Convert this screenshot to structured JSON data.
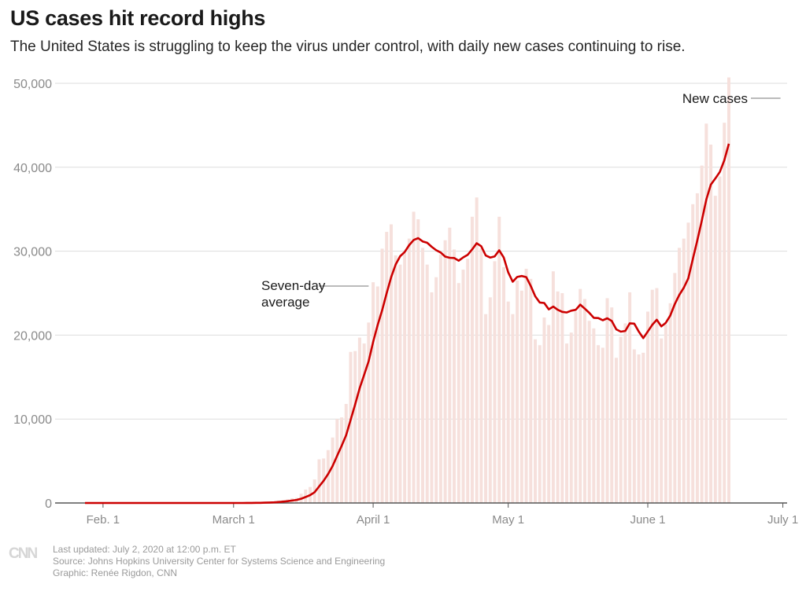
{
  "header": {
    "title": "US cases hit record highs",
    "subtitle": "The United States is struggling to keep the virus under control, with daily new cases continuing to rise."
  },
  "footer": {
    "logo": "CNN",
    "updated": "Last updated: July 2, 2020 at 12:00 p.m. ET",
    "source": "Source: Johns Hopkins University Center for Systems Science and Engineering",
    "credit": "Graphic: Renée Rigdon, CNN"
  },
  "colors": {
    "bar": "#f6e0dc",
    "line": "#cc0000",
    "grid": "#dddddd",
    "axis": "#555555",
    "tick_text": "#8a8a8a"
  },
  "chart_data": {
    "type": "bar",
    "title": "US cases hit record highs",
    "xlabel": "",
    "ylabel": "",
    "start_date": "2020-01-28",
    "end_date": "2020-07-01",
    "ylim": [
      0,
      50000
    ],
    "grid": true,
    "y_ticks": [
      {
        "value": 0,
        "label": "0"
      },
      {
        "value": 10000,
        "label": "10,000"
      },
      {
        "value": 20000,
        "label": "20,000"
      },
      {
        "value": 30000,
        "label": "30,000"
      },
      {
        "value": 40000,
        "label": "40,000"
      },
      {
        "value": 50000,
        "label": "50,000"
      }
    ],
    "x_ticks": [
      {
        "day": 4,
        "label": "Feb. 1"
      },
      {
        "day": 33,
        "label": "March 1"
      },
      {
        "day": 64,
        "label": "April 1"
      },
      {
        "day": 94,
        "label": "May 1"
      },
      {
        "day": 125,
        "label": "June 1"
      },
      {
        "day": 155,
        "label": "July 1"
      }
    ],
    "annotations": [
      {
        "label_lines": [
          "Seven-day",
          "average"
        ],
        "target": "average",
        "day": 63
      },
      {
        "label_lines": [
          "New cases"
        ],
        "target": "bars",
        "day": 155
      }
    ],
    "series": [
      {
        "name": "New cases",
        "kind": "bar",
        "values": [
          0,
          0,
          0,
          0,
          0,
          1,
          0,
          2,
          0,
          0,
          1,
          0,
          0,
          0,
          0,
          1,
          0,
          0,
          0,
          0,
          0,
          0,
          0,
          0,
          0,
          0,
          0,
          0,
          1,
          0,
          0,
          0,
          0,
          5,
          9,
          18,
          20,
          25,
          30,
          50,
          90,
          150,
          180,
          290,
          350,
          430,
          560,
          620,
          1100,
          1600,
          1900,
          2800,
          5200,
          5300,
          6300,
          7800,
          10000,
          10200,
          11800,
          18000,
          18100,
          19700,
          19000,
          21500,
          26300,
          25800,
          30300,
          32300,
          33200,
          29500,
          28400,
          29800,
          31500,
          34700,
          33800,
          30400,
          28400,
          25100,
          26900,
          29600,
          31300,
          32800,
          30200,
          26200,
          27800,
          29100,
          34100,
          36400,
          30300,
          22500,
          24500,
          28800,
          34100,
          28100,
          24000,
          22500,
          26500,
          25300,
          27900,
          26700,
          19500,
          18800,
          22100,
          21200,
          27600,
          25200,
          25000,
          19000,
          20300,
          22800,
          25500,
          24300,
          21700,
          20800,
          18800,
          18500,
          24400,
          23300,
          17300,
          19800,
          21400,
          25100,
          18300,
          17700,
          17900,
          22800,
          25400,
          25600,
          19600,
          21300,
          23800,
          27400,
          30400,
          31500,
          33400,
          35600,
          36900,
          40200,
          45200,
          42700,
          36600,
          38900,
          45300,
          50700
        ],
        "color": "#f6e0dc"
      },
      {
        "name": "Seven-day average",
        "kind": "line",
        "computed_from": "New cases",
        "window_days": 7,
        "color": "#cc0000"
      }
    ]
  }
}
